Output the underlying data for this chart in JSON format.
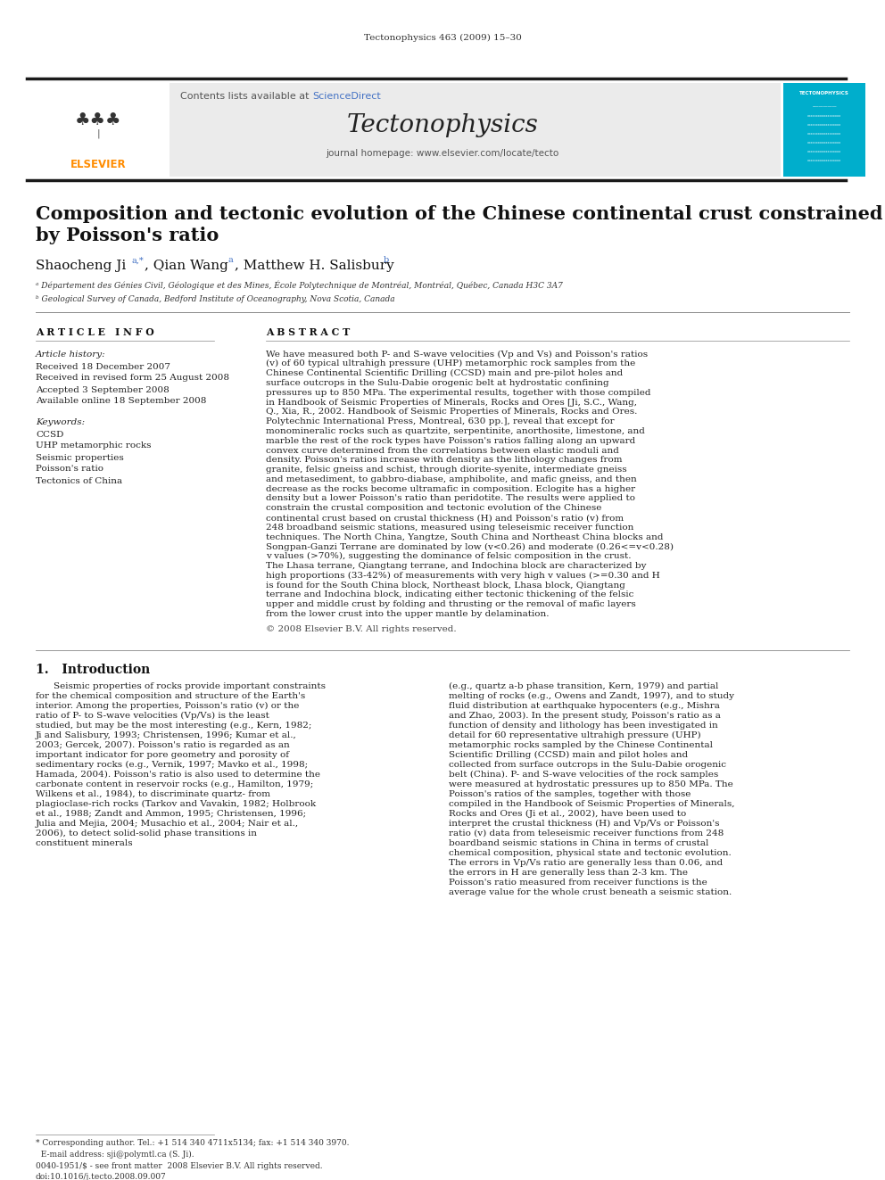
{
  "journal_line": "Tectonophysics 463 (2009) 15–30",
  "journal_name": "Tectonophysics",
  "sciencedirect_text": "Contents lists available at ScienceDirect",
  "homepage_text": "journal homepage: www.elsevier.com/locate/tecto",
  "sciencedirect_color": "#4472C4",
  "elsevier_color": "#FF8C00",
  "tecto_header_bg": "#00AECC",
  "header_bg": "#E8E8E8",
  "paper_title_line1": "Composition and tectonic evolution of the Chinese continental crust constrained",
  "paper_title_line2": "by Poisson's ratio",
  "affil_a": "ᵃ Département des Génies Civil, Géologique et des Mines, École Polytechnique de Montréal, Montréal, Québec, Canada H3C 3A7",
  "affil_b": "ᵇ Geological Survey of Canada, Bedford Institute of Oceanography, Nova Scotia, Canada",
  "article_info_title": "A R T I C L E   I N F O",
  "abstract_title": "A B S T R A C T",
  "article_history_label": "Article history:",
  "received": "Received 18 December 2007",
  "revised": "Received in revised form 25 August 2008",
  "accepted": "Accepted 3 September 2008",
  "available": "Available online 18 September 2008",
  "keywords_label": "Keywords:",
  "keywords": [
    "CCSD",
    "UHP metamorphic rocks",
    "Seismic properties",
    "Poisson's ratio",
    "Tectonics of China"
  ],
  "abstract_text": "We have measured both P- and S-wave velocities (Vp and Vs) and Poisson's ratios (v) of 60 typical ultrahigh pressure (UHP) metamorphic rock samples from the Chinese Continental Scientific Drilling (CCSD) main and pre-pilot holes and surface outcrops in the Sulu-Dabie orogenic belt at hydrostatic confining pressures up to 850 MPa. The experimental results, together with those compiled in Handbook of Seismic Properties of Minerals, Rocks and Ores [Ji, S.C., Wang, Q., Xia, R., 2002. Handbook of Seismic Properties of Minerals, Rocks and Ores. Polytechnic International Press, Montreal, 630 pp.], reveal that except for monomineralic rocks such as quartzite, serpentinite, anorthosite, limestone, and marble the rest of the rock types have Poisson's ratios falling along an upward convex curve determined from the correlations between elastic moduli and density. Poisson's ratios increase with density as the lithology changes from granite, felsic gneiss and schist, through diorite-syenite, intermediate gneiss and metasediment, to gabbro-diabase, amphibolite, and mafic gneiss, and then decrease as the rocks become ultramafic in composition. Eclogite has a higher density but a lower Poisson's ratio than peridotite. The results were applied to constrain the crustal composition and tectonic evolution of the Chinese continental crust based on crustal thickness (H) and Poisson's ratio (v) from 248 broadband seismic stations, measured using teleseismic receiver function techniques. The North China, Yangtze, South China and Northeast China blocks and Songpan-Ganzi Terrane are dominated by low (v<0.26) and moderate (0.26<=v<0.28) v values (>70%), suggesting the dominance of felsic composition in the crust. The Lhasa terrane, Qiangtang terrane, and Indochina block are characterized by high proportions (33-42%) of measurements with very high v values (>=0.30 and H is found for the South China block, Northeast block, Lhasa block, Qiangtang terrane and Indochina block, indicating either tectonic thickening of the felsic upper and middle crust by folding and thrusting or the removal of mafic layers from the lower crust into the upper mantle by delamination.",
  "copyright": "© 2008 Elsevier B.V. All rights reserved.",
  "intro_title": "1.   Introduction",
  "intro_col1": "Seismic properties of rocks provide important constraints for the chemical composition and structure of the Earth's interior. Among the properties, Poisson's ratio (v) or the ratio of P- to S-wave velocities (Vp/Vs) is the least studied, but may be the most interesting (e.g., Kern, 1982; Ji and Salisbury, 1993; Christensen, 1996; Kumar et al., 2003; Gercek, 2007). Poisson's ratio is regarded as an important indicator for pore geometry and porosity of sedimentary rocks (e.g., Vernik, 1997; Mavko et al., 1998; Hamada, 2004). Poisson's ratio is also used to determine the carbonate content in reservoir rocks (e.g., Hamilton, 1979; Wilkens et al., 1984), to discriminate quartz- from plagioclase-rich rocks (Tarkov and Vavakin, 1982; Holbrook et al., 1988; Zandt and Ammon, 1995; Christensen, 1996; Julia and Mejia, 2004; Musachio et al., 2004; Nair et al., 2006), to detect solid-solid phase transitions in constituent minerals",
  "intro_col2": "(e.g., quartz a-b phase transition, Kern, 1979) and partial melting of rocks (e.g., Owens and Zandt, 1997), and to study fluid distribution at earthquake hypocenters (e.g., Mishra and Zhao, 2003). In the present study, Poisson's ratio as a function of density and lithology has been investigated in detail for 60 representative ultrahigh pressure (UHP) metamorphic rocks sampled by the Chinese Continental Scientific Drilling (CCSD) main and pilot holes and collected from surface outcrops in the Sulu-Dabie orogenic belt (China). P- and S-wave velocities of the rock samples were measured at hydrostatic pressures up to 850 MPa. The Poisson's ratios of the samples, together with those compiled in the Handbook of Seismic Properties of Minerals, Rocks and Ores (Ji et al., 2002), have been used to interpret the crustal thickness (H) and Vp/Vs or Poisson's ratio (v) data from teleseismic receiver functions from 248 boardband seismic stations in China in terms of crustal chemical composition, physical state and tectonic evolution. The errors in Vp/Vs ratio are generally less than 0.06, and the errors in H are generally less than 2-3 km. The Poisson's ratio measured from receiver functions is the average value for the whole crust beneath a seismic station.",
  "footnote_corresponding": "* Corresponding author. Tel.: +1 514 340 4711x5134; fax: +1 514 340 3970.",
  "footnote_email": "  E-mail address: sji@polymtl.ca (S. Ji).",
  "footnote_issn": "0040-1951/$ - see front matter  2008 Elsevier B.V. All rights reserved.",
  "footnote_doi": "doi:10.1016/j.tecto.2008.09.007",
  "bg_color": "#FFFFFF",
  "text_color": "#000000",
  "link_color": "#4472C4"
}
